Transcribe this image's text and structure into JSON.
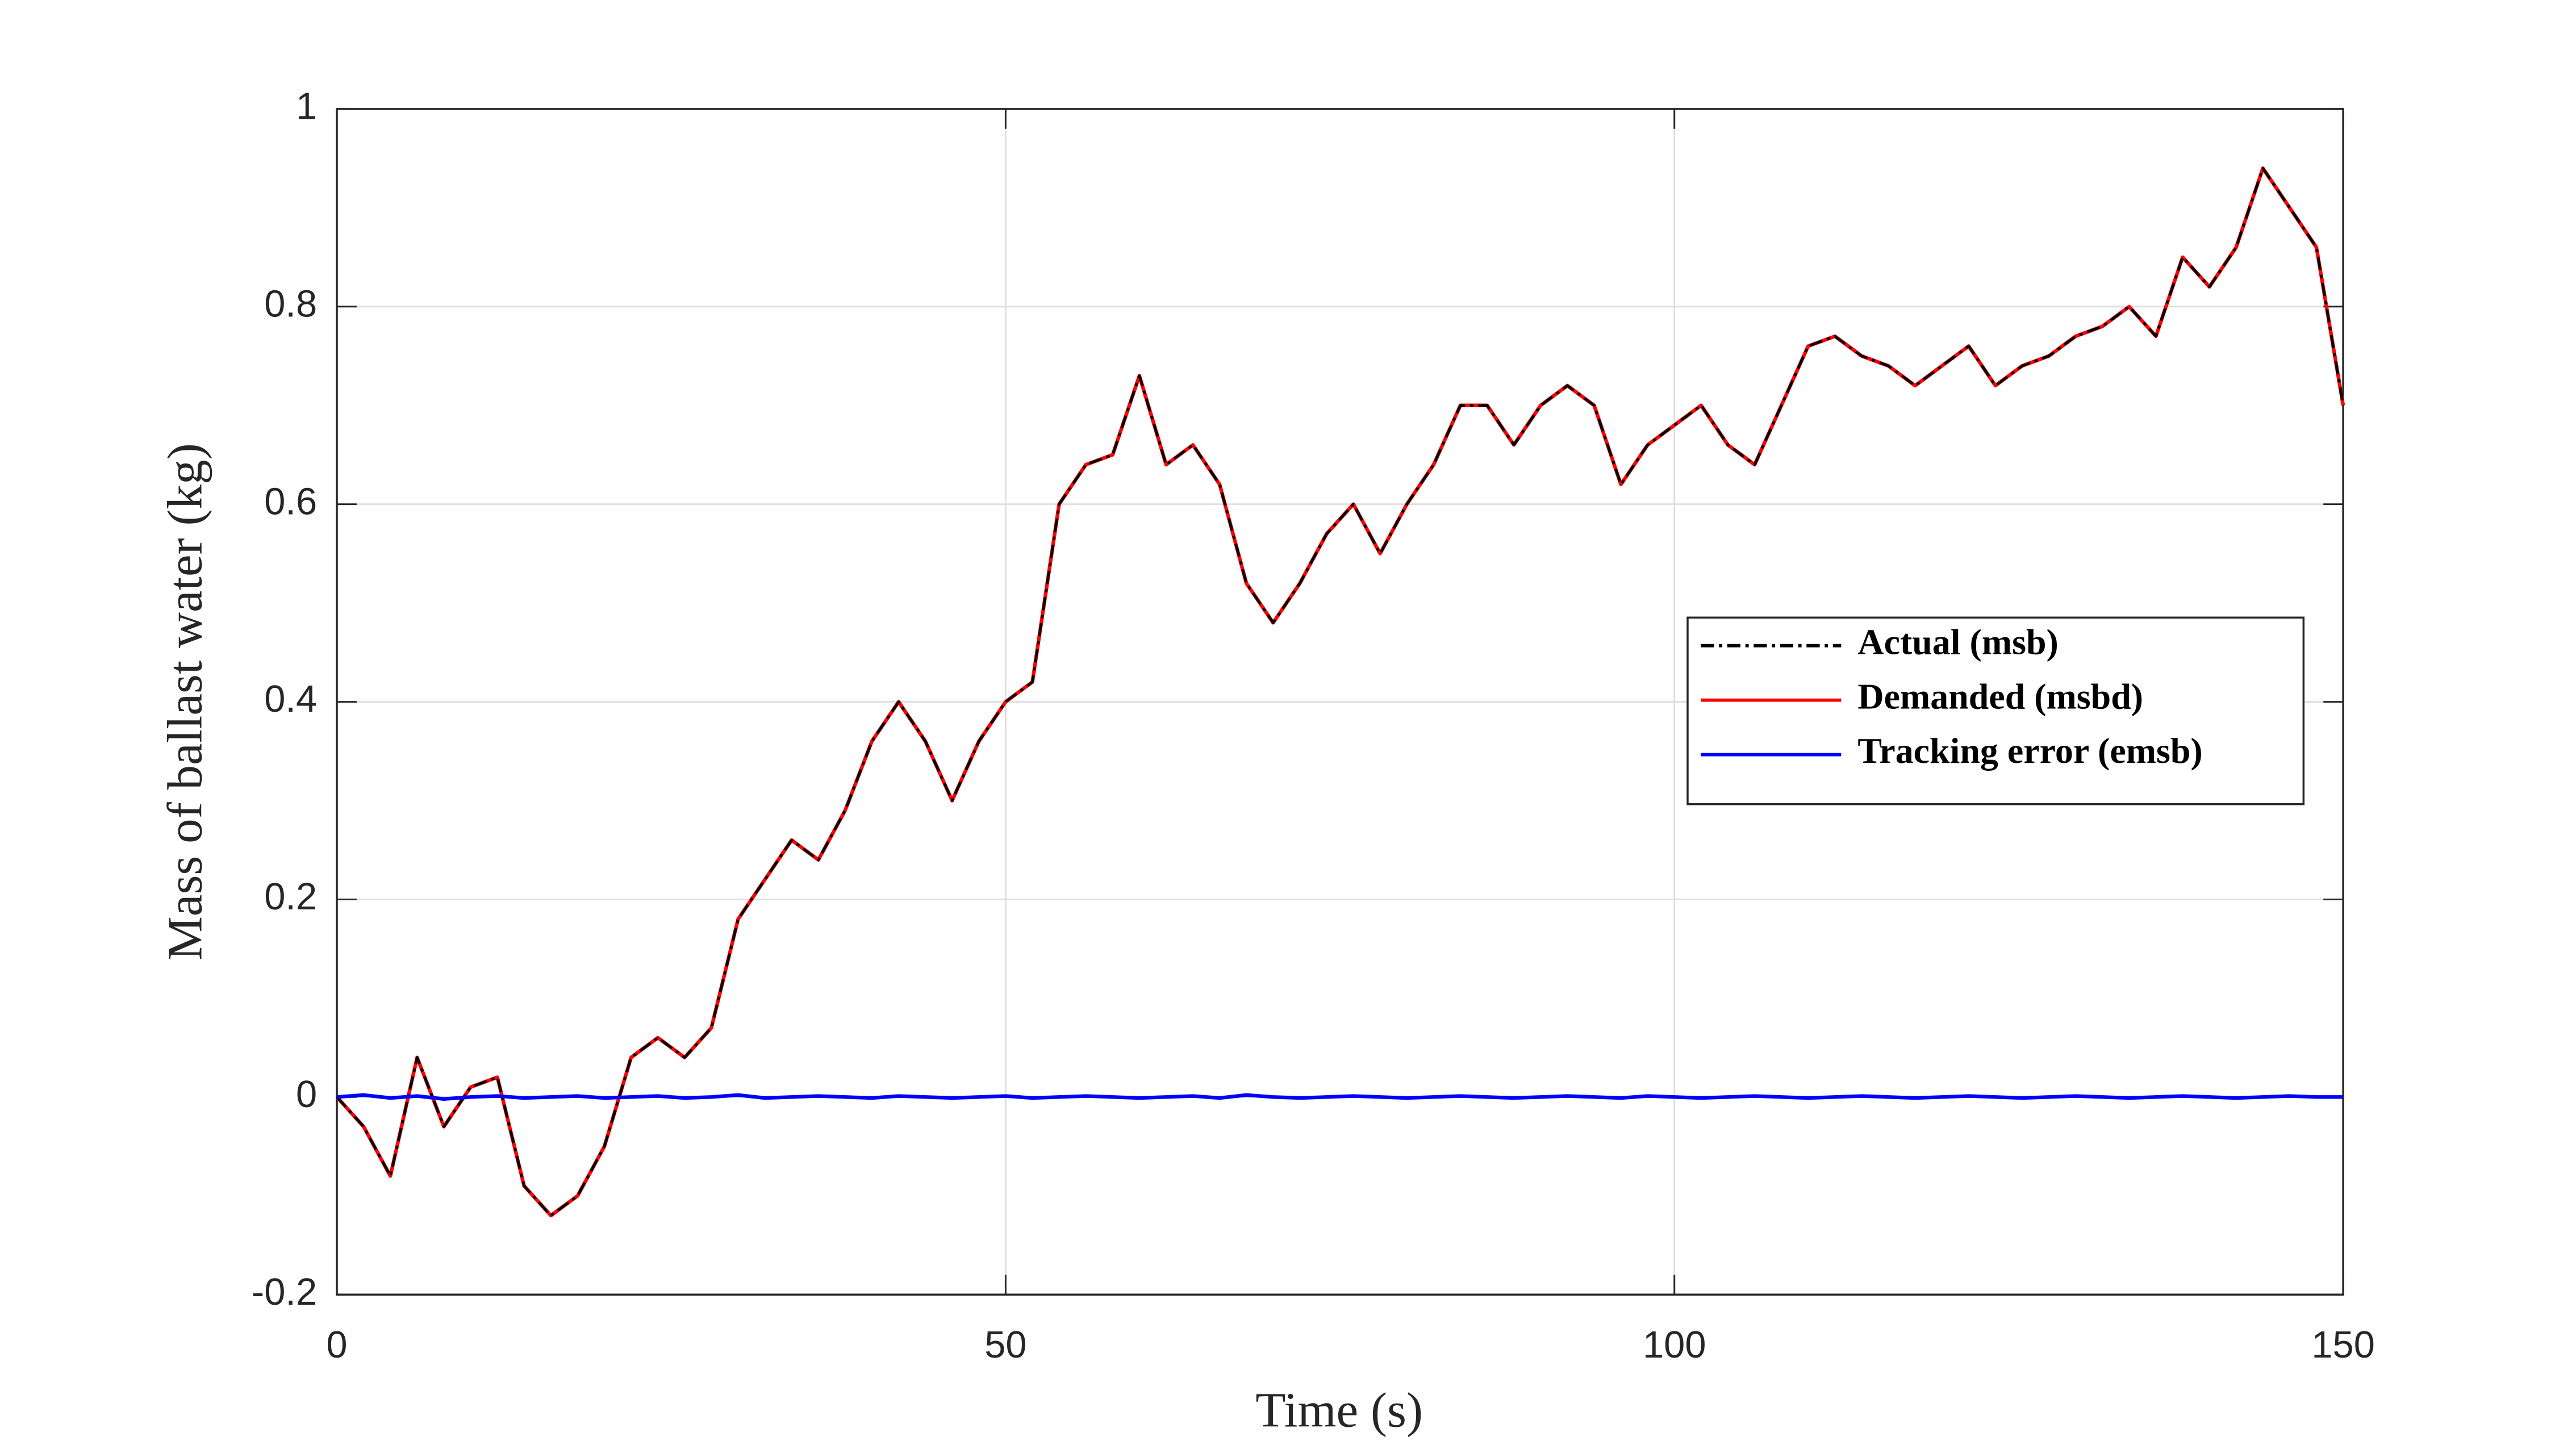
{
  "chart_data": {
    "type": "line",
    "x_label": "Time (s)",
    "y_label": "Mass of ballast water (kg)",
    "x": [
      0,
      2,
      4,
      6,
      8,
      10,
      12,
      14,
      16,
      18,
      20,
      22,
      24,
      26,
      28,
      30,
      32,
      34,
      36,
      38,
      40,
      42,
      44,
      46,
      48,
      50,
      52,
      54,
      56,
      58,
      60,
      62,
      64,
      66,
      68,
      70,
      72,
      74,
      76,
      78,
      80,
      82,
      84,
      86,
      88,
      90,
      92,
      94,
      96,
      98,
      100,
      102,
      104,
      106,
      108,
      110,
      112,
      114,
      116,
      118,
      120,
      122,
      124,
      126,
      128,
      130,
      132,
      134,
      136,
      138,
      140,
      142,
      144,
      146,
      148,
      150
    ],
    "series": [
      {
        "name": "Actual (msb)",
        "color": "#000000",
        "dash": "dashdot",
        "values": [
          0.0,
          -0.03,
          -0.08,
          0.04,
          -0.03,
          0.01,
          0.02,
          -0.09,
          -0.12,
          -0.1,
          -0.05,
          0.04,
          0.06,
          0.04,
          0.07,
          0.18,
          0.22,
          0.26,
          0.24,
          0.29,
          0.36,
          0.4,
          0.36,
          0.3,
          0.36,
          0.4,
          0.42,
          0.6,
          0.64,
          0.65,
          0.73,
          0.64,
          0.66,
          0.62,
          0.52,
          0.48,
          0.52,
          0.57,
          0.6,
          0.55,
          0.6,
          0.64,
          0.7,
          0.7,
          0.66,
          0.7,
          0.72,
          0.7,
          0.62,
          0.66,
          0.68,
          0.7,
          0.66,
          0.64,
          0.7,
          0.76,
          0.77,
          0.75,
          0.74,
          0.72,
          0.74,
          0.76,
          0.72,
          0.74,
          0.75,
          0.77,
          0.78,
          0.8,
          0.77,
          0.85,
          0.82,
          0.86,
          0.94,
          0.9,
          0.86,
          0.7
        ]
      },
      {
        "name": "Demanded (msbd)",
        "color": "#ff0000",
        "dash": "solid",
        "values": [
          0.0,
          -0.03,
          -0.08,
          0.04,
          -0.03,
          0.01,
          0.02,
          -0.09,
          -0.12,
          -0.1,
          -0.05,
          0.04,
          0.06,
          0.04,
          0.07,
          0.18,
          0.22,
          0.26,
          0.24,
          0.29,
          0.36,
          0.4,
          0.36,
          0.3,
          0.36,
          0.4,
          0.42,
          0.6,
          0.64,
          0.65,
          0.73,
          0.64,
          0.66,
          0.62,
          0.52,
          0.48,
          0.52,
          0.57,
          0.6,
          0.55,
          0.6,
          0.64,
          0.7,
          0.7,
          0.66,
          0.7,
          0.72,
          0.7,
          0.62,
          0.66,
          0.68,
          0.7,
          0.66,
          0.64,
          0.7,
          0.76,
          0.77,
          0.75,
          0.74,
          0.72,
          0.74,
          0.76,
          0.72,
          0.74,
          0.75,
          0.77,
          0.78,
          0.8,
          0.77,
          0.85,
          0.82,
          0.86,
          0.94,
          0.9,
          0.86,
          0.7
        ]
      },
      {
        "name": "Tracking error (emsb)",
        "color": "#0000ff",
        "dash": "solid",
        "values": [
          0.0,
          0.002,
          -0.001,
          0.001,
          -0.002,
          0.0,
          0.001,
          -0.001,
          0.0,
          0.001,
          -0.001,
          0.0,
          0.001,
          -0.001,
          0.0,
          0.002,
          -0.001,
          0.0,
          0.001,
          0.0,
          -0.001,
          0.001,
          0.0,
          -0.001,
          0.0,
          0.001,
          -0.001,
          0.0,
          0.001,
          0.0,
          -0.001,
          0.0,
          0.001,
          -0.001,
          0.002,
          0.0,
          -0.001,
          0.0,
          0.001,
          0.0,
          -0.001,
          0.0,
          0.001,
          0.0,
          -0.001,
          0.0,
          0.001,
          0.0,
          -0.001,
          0.001,
          0.0,
          -0.001,
          0.0,
          0.001,
          0.0,
          -0.001,
          0.0,
          0.001,
          0.0,
          -0.001,
          0.0,
          0.001,
          0.0,
          -0.001,
          0.0,
          0.001,
          0.0,
          -0.001,
          0.0,
          0.001,
          0.0,
          -0.001,
          0.0,
          0.001,
          0.0,
          0.0
        ]
      }
    ],
    "xlim": [
      0,
      150
    ],
    "xticks": [
      0,
      50,
      100,
      150
    ],
    "ylim": [
      -0.2,
      1
    ],
    "yticks": [
      -0.2,
      0,
      0.2,
      0.4,
      0.6,
      0.8,
      1
    ],
    "grid": true,
    "legend": "right"
  }
}
